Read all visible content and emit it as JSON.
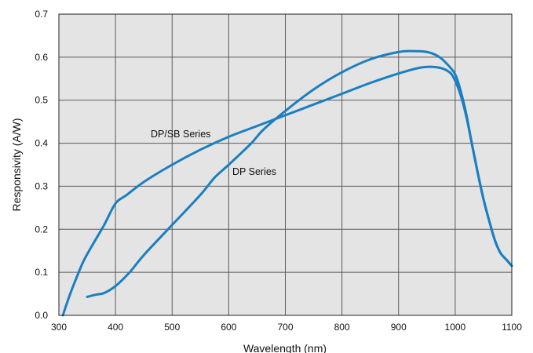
{
  "chart_data": {
    "type": "line",
    "xlabel": "Wavelength (nm)",
    "ylabel": "Responsivity (A/W)",
    "xlim": [
      300,
      1100
    ],
    "ylim": [
      0,
      0.7
    ],
    "x_ticks": [
      "300",
      "400",
      "500",
      "600",
      "700",
      "800",
      "900",
      "1000",
      "1100"
    ],
    "y_ticks": [
      "0.0",
      "0.1",
      "0.2",
      "0.3",
      "0.4",
      "0.5",
      "0.6",
      "0.7"
    ],
    "grid": true,
    "colors": {
      "line": "#1a7fc1",
      "plot_bg": "#e4e4e4",
      "grid": "#5a5a5a"
    },
    "series": [
      {
        "name": "DP/SB Series",
        "x": [
          307,
          320,
          335,
          345,
          360,
          380,
          400,
          420,
          450,
          500,
          550,
          600,
          650,
          700,
          750,
          800,
          850,
          900,
          940,
          970,
          990,
          1000,
          1010,
          1020,
          1030,
          1040,
          1050,
          1060,
          1070,
          1080,
          1090,
          1100
        ],
        "y": [
          0.0,
          0.05,
          0.1,
          0.13,
          0.165,
          0.21,
          0.26,
          0.28,
          0.31,
          0.35,
          0.385,
          0.415,
          0.44,
          0.465,
          0.49,
          0.515,
          0.54,
          0.562,
          0.576,
          0.576,
          0.565,
          0.545,
          0.51,
          0.46,
          0.395,
          0.33,
          0.27,
          0.22,
          0.175,
          0.145,
          0.13,
          0.115
        ]
      },
      {
        "name": "DP Series",
        "x": [
          350,
          365,
          380,
          400,
          425,
          450,
          500,
          550,
          575,
          600,
          640,
          660,
          700,
          750,
          800,
          850,
          900,
          925,
          950,
          970,
          985,
          1000,
          1010,
          1020,
          1030,
          1040,
          1050,
          1060,
          1070,
          1080,
          1090,
          1100
        ],
        "y": [
          0.043,
          0.048,
          0.052,
          0.068,
          0.1,
          0.14,
          0.21,
          0.28,
          0.32,
          0.35,
          0.4,
          0.43,
          0.475,
          0.525,
          0.565,
          0.595,
          0.612,
          0.614,
          0.612,
          0.602,
          0.585,
          0.56,
          0.52,
          0.465,
          0.395,
          0.33,
          0.27,
          0.22,
          0.175,
          0.145,
          0.13,
          0.115
        ]
      }
    ]
  }
}
